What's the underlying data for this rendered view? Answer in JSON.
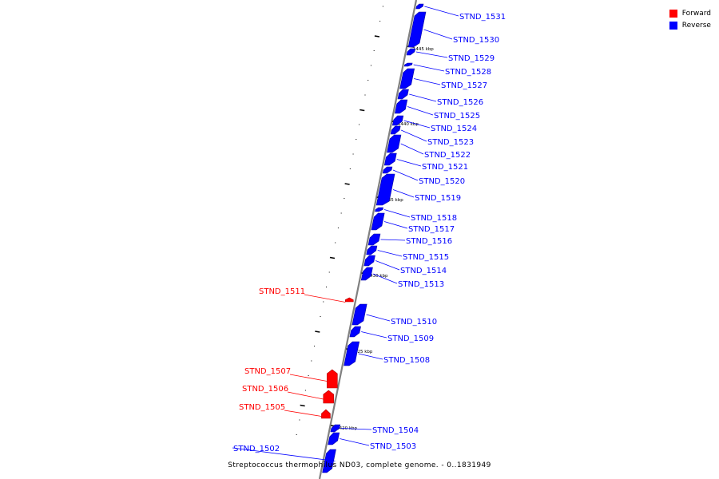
{
  "legend": [
    {
      "label": "Forward",
      "color": "#ff0000"
    },
    {
      "label": "Reverse",
      "color": "#0000ff"
    }
  ],
  "caption": "Streptococcus thermophilus ND03, complete genome. - 0..1831949",
  "colors": {
    "forward": "#ff0000",
    "reverse": "#0000ff",
    "axis": "#808080"
  },
  "ticks": [
    {
      "label": "1445 kbp"
    },
    {
      "label": "1440 kbp"
    },
    {
      "label": "1435 kbp"
    },
    {
      "label": "1430 kbp"
    },
    {
      "label": "1425 kbp"
    },
    {
      "label": "1420 kbp"
    }
  ],
  "genes": [
    {
      "name": "STND_1531",
      "strand": "reverse"
    },
    {
      "name": "STND_1530",
      "strand": "reverse"
    },
    {
      "name": "STND_1529",
      "strand": "reverse"
    },
    {
      "name": "STND_1528",
      "strand": "reverse"
    },
    {
      "name": "STND_1527",
      "strand": "reverse"
    },
    {
      "name": "STND_1526",
      "strand": "reverse"
    },
    {
      "name": "STND_1525",
      "strand": "reverse"
    },
    {
      "name": "STND_1524",
      "strand": "reverse"
    },
    {
      "name": "STND_1523",
      "strand": "reverse"
    },
    {
      "name": "STND_1522",
      "strand": "reverse"
    },
    {
      "name": "STND_1521",
      "strand": "reverse"
    },
    {
      "name": "STND_1520",
      "strand": "reverse"
    },
    {
      "name": "STND_1519",
      "strand": "reverse"
    },
    {
      "name": "STND_1518",
      "strand": "reverse"
    },
    {
      "name": "STND_1517",
      "strand": "reverse"
    },
    {
      "name": "STND_1516",
      "strand": "reverse"
    },
    {
      "name": "STND_1515",
      "strand": "reverse"
    },
    {
      "name": "STND_1514",
      "strand": "reverse"
    },
    {
      "name": "STND_1513",
      "strand": "reverse"
    },
    {
      "name": "STND_1511",
      "strand": "forward"
    },
    {
      "name": "STND_1510",
      "strand": "reverse"
    },
    {
      "name": "STND_1509",
      "strand": "reverse"
    },
    {
      "name": "STND_1508",
      "strand": "reverse"
    },
    {
      "name": "STND_1507",
      "strand": "forward"
    },
    {
      "name": "STND_1506",
      "strand": "forward"
    },
    {
      "name": "STND_1505",
      "strand": "forward"
    },
    {
      "name": "STND_1504",
      "strand": "reverse"
    },
    {
      "name": "STND_1503",
      "strand": "reverse"
    },
    {
      "name": "STND_1502",
      "strand": "reverse"
    }
  ]
}
